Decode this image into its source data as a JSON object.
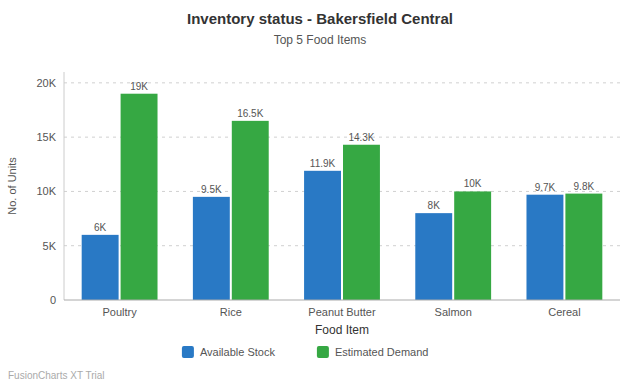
{
  "chart_data": {
    "type": "bar",
    "title": "Inventory status - Bakersfield Central",
    "subtitle": "Top 5 Food Items",
    "xlabel": "Food Item",
    "ylabel": "No. of Units",
    "categories": [
      "Poultry",
      "Rice",
      "Peanut Butter",
      "Salmon",
      "Cereal"
    ],
    "series": [
      {
        "name": "Available Stock",
        "color": "#2979c5",
        "values": [
          6000,
          9500,
          11900,
          8000,
          9700
        ],
        "value_labels": [
          "6K",
          "9.5K",
          "11.9K",
          "8K",
          "9.7K"
        ]
      },
      {
        "name": "Estimated Demand",
        "color": "#36a843",
        "values": [
          19000,
          16500,
          14300,
          10000,
          9800
        ],
        "value_labels": [
          "19K",
          "16.5K",
          "14.3K",
          "10K",
          "9.8K"
        ]
      }
    ],
    "ylim": [
      0,
      21000
    ],
    "yticks": [
      0,
      {
        "value": 5000,
        "label": "5K"
      },
      {
        "value": 10000,
        "label": "10K"
      },
      {
        "value": 15000,
        "label": "15K"
      },
      {
        "value": 20000,
        "label": "20K"
      }
    ],
    "grid": true,
    "data_labels": true,
    "legend": "bottom",
    "annotations": [
      "FusionCharts XT Trial"
    ]
  }
}
